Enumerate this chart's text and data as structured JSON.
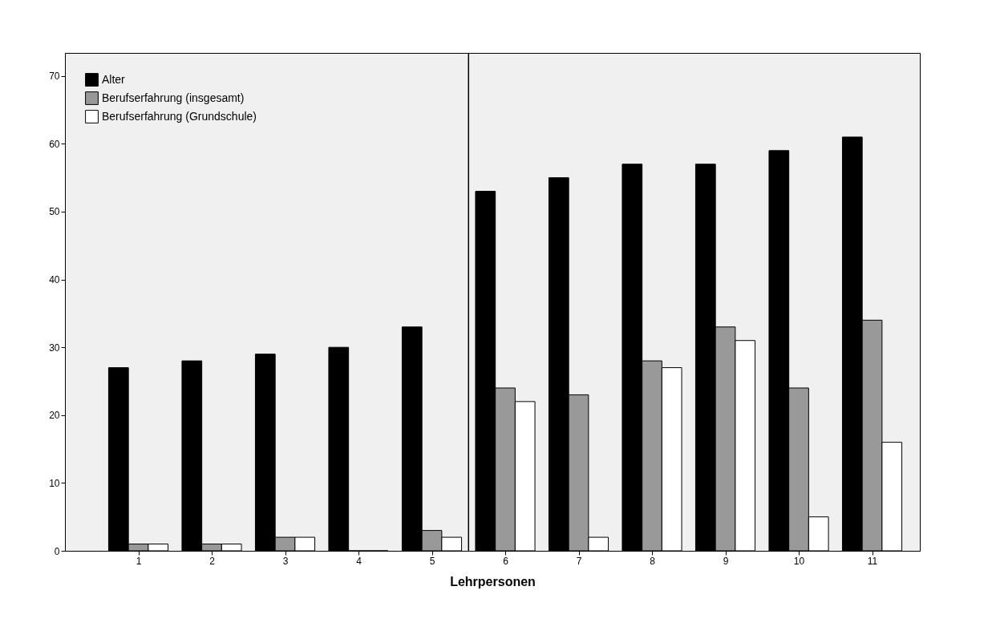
{
  "chart_data": {
    "type": "bar",
    "xlabel": "Lehrpersonen",
    "x": [
      1,
      2,
      3,
      4,
      5,
      6,
      7,
      8,
      9,
      10,
      11
    ],
    "xlim": [
      0,
      11.65
    ],
    "xticks": [
      1,
      2,
      3,
      4,
      5,
      6,
      7,
      8,
      9,
      10,
      11
    ],
    "ylim": [
      0,
      73.4
    ],
    "yticks": [
      0,
      10,
      20,
      30,
      40,
      50,
      60,
      70
    ],
    "grid": false,
    "legend": "top left",
    "series": [
      {
        "name": "Alter",
        "color": "#000000",
        "values": [
          27,
          28,
          29,
          30,
          33,
          53,
          55,
          57,
          57,
          59,
          61
        ]
      },
      {
        "name": "Berufserfahrung (insgesamt)",
        "color": "#999999",
        "values": [
          1,
          1,
          2,
          0,
          3,
          24,
          23,
          28,
          33,
          24,
          34
        ]
      },
      {
        "name": "Berufserfahrung (Grundschule)",
        "color": "#ffffff",
        "values": [
          1,
          1,
          2,
          0,
          2,
          22,
          2,
          27,
          31,
          5,
          16
        ]
      }
    ],
    "ref_lines": [
      {
        "axis": "x",
        "value": 5.5
      }
    ]
  }
}
